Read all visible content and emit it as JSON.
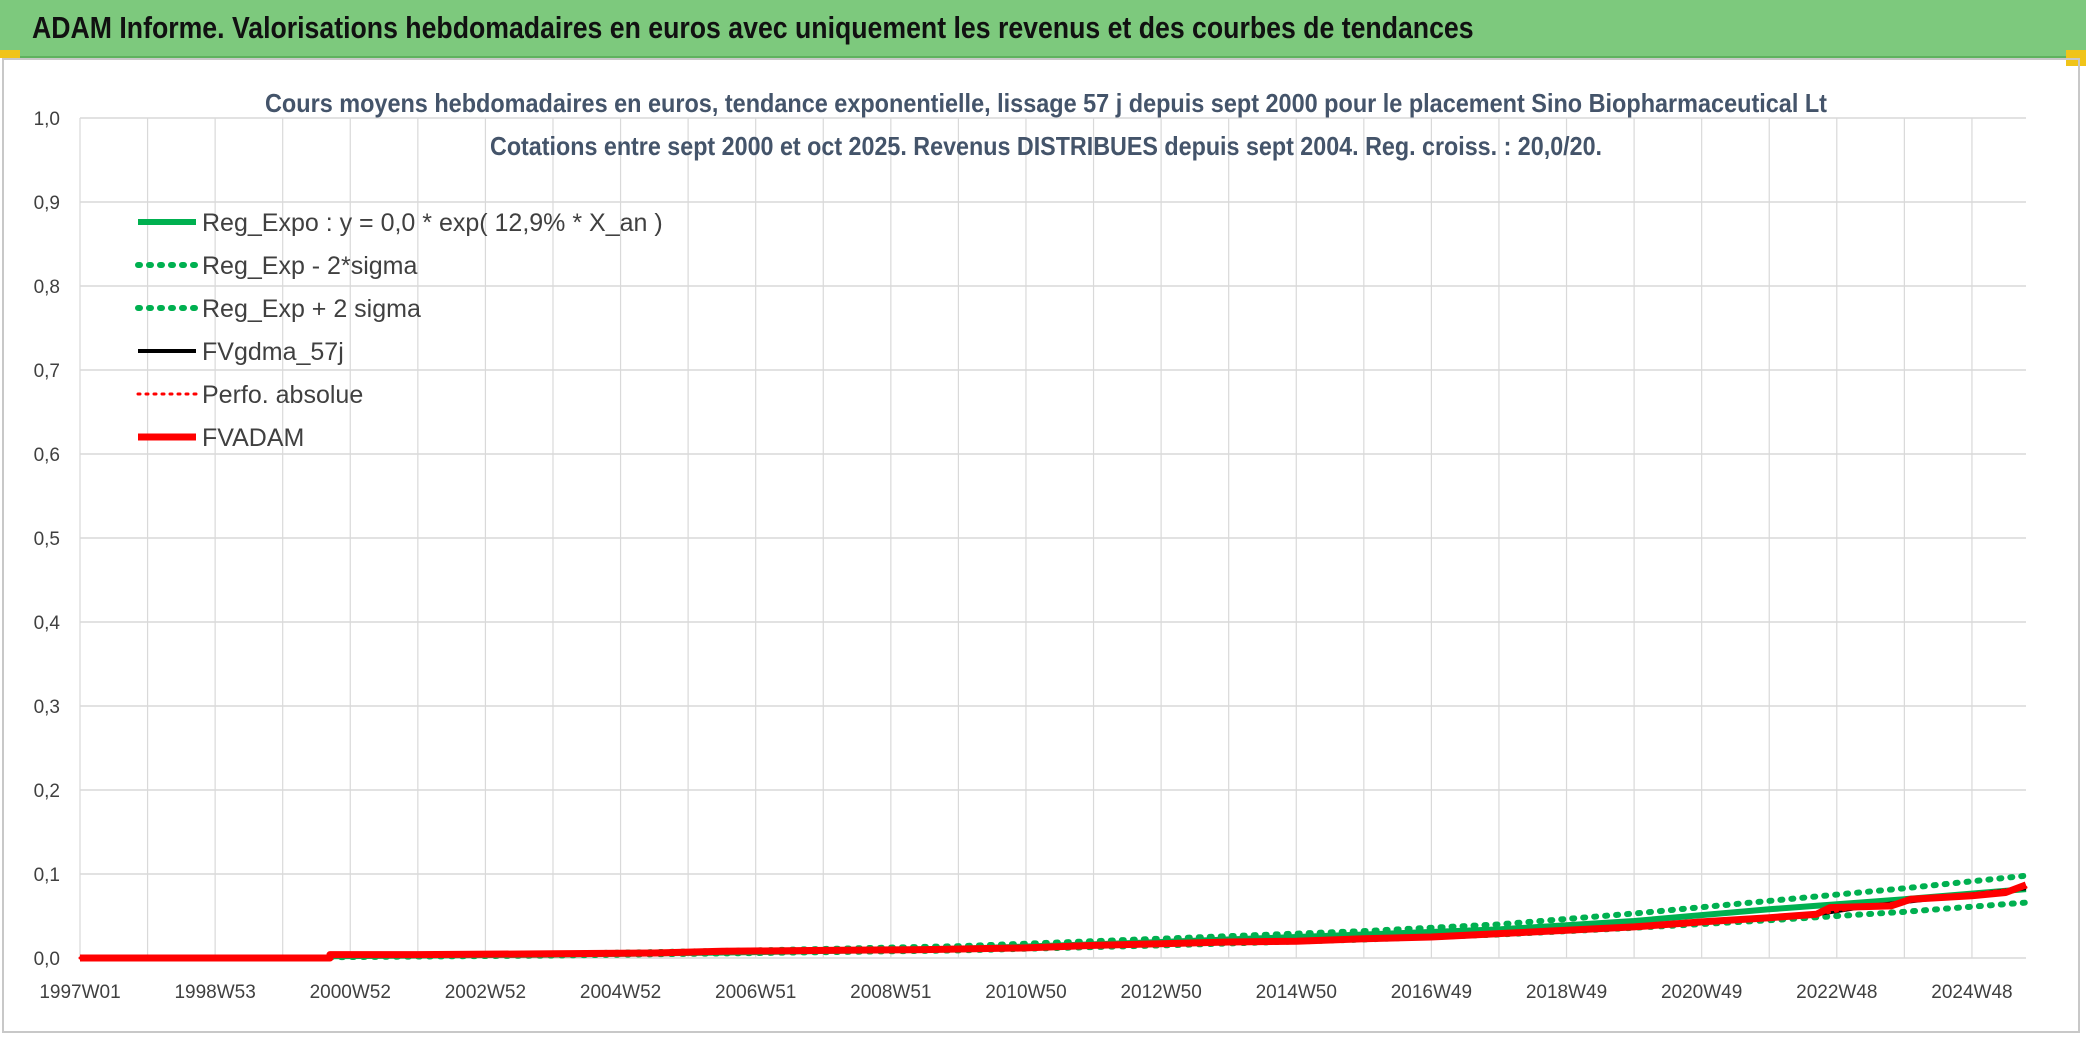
{
  "header": {
    "title": "ADAM Informe. Valorisations hebdomadaires en euros avec uniquement les revenus et des courbes de tendances"
  },
  "colors": {
    "banner": "#7dc97d",
    "green": "#00b050",
    "black": "#000000",
    "red": "#ff0000",
    "grid": "#d9d9d9",
    "title": "#44546a"
  },
  "chart_data": {
    "type": "line",
    "title_line1": "Cours moyens hebdomadaires en euros, tendance exponentielle, lissage 57 j depuis sept 2000 pour le placement Sino Biopharmaceutical Lt",
    "title_line2": "Cotations entre sept 2000 et oct 2025. Revenus DISTRIBUES depuis sept 2004. Reg. croiss. : 20,0/20.",
    "ylim": [
      0,
      1
    ],
    "yticks": [
      "0,0",
      "0,1",
      "0,2",
      "0,3",
      "0,4",
      "0,5",
      "0,6",
      "0,7",
      "0,8",
      "0,9",
      "1,0"
    ],
    "xlim": [
      1997.0,
      2025.8
    ],
    "xticks": [
      {
        "label": "1997W01",
        "x": 1997.0
      },
      {
        "label": "1998W53",
        "x": 1999.0
      },
      {
        "label": "2000W52",
        "x": 2001.0
      },
      {
        "label": "2002W52",
        "x": 2003.0
      },
      {
        "label": "2004W52",
        "x": 2005.0
      },
      {
        "label": "2006W51",
        "x": 2007.0
      },
      {
        "label": "2008W51",
        "x": 2009.0
      },
      {
        "label": "2010W50",
        "x": 2011.0
      },
      {
        "label": "2012W50",
        "x": 2013.0
      },
      {
        "label": "2014W50",
        "x": 2015.0
      },
      {
        "label": "2016W49",
        "x": 2017.0
      },
      {
        "label": "2018W49",
        "x": 2019.0
      },
      {
        "label": "2020W49",
        "x": 2021.0
      },
      {
        "label": "2022W48",
        "x": 2023.0
      },
      {
        "label": "2024W48",
        "x": 2025.0
      }
    ],
    "grid": true,
    "legend_position": "top-left",
    "series": [
      {
        "name": "Reg_Expo : y = 0,0 * exp( 12,9% *  X_an )",
        "color": "#00b050",
        "style": "solid",
        "width": 6,
        "points": [
          [
            2000.7,
            0.002
          ],
          [
            2004,
            0.004
          ],
          [
            2007,
            0.007
          ],
          [
            2010,
            0.011
          ],
          [
            2013,
            0.019
          ],
          [
            2016,
            0.028
          ],
          [
            2018,
            0.034
          ],
          [
            2020,
            0.044
          ],
          [
            2022,
            0.058
          ],
          [
            2024,
            0.07
          ],
          [
            2025.8,
            0.082
          ]
        ]
      },
      {
        "name": "Reg_Exp - 2*sigma",
        "color": "#00b050",
        "style": "dotted",
        "width": 6,
        "points": [
          [
            2000.7,
            0.001
          ],
          [
            2004,
            0.003
          ],
          [
            2007,
            0.006
          ],
          [
            2010,
            0.009
          ],
          [
            2013,
            0.015
          ],
          [
            2016,
            0.022
          ],
          [
            2018,
            0.028
          ],
          [
            2020,
            0.036
          ],
          [
            2022,
            0.045
          ],
          [
            2024,
            0.055
          ],
          [
            2025.8,
            0.066
          ]
        ]
      },
      {
        "name": "Reg_Exp + 2 sigma",
        "color": "#00b050",
        "style": "dotted",
        "width": 6,
        "points": [
          [
            2000.7,
            0.003
          ],
          [
            2004,
            0.005
          ],
          [
            2007,
            0.009
          ],
          [
            2010,
            0.014
          ],
          [
            2013,
            0.023
          ],
          [
            2016,
            0.032
          ],
          [
            2018,
            0.04
          ],
          [
            2020,
            0.053
          ],
          [
            2022,
            0.068
          ],
          [
            2024,
            0.083
          ],
          [
            2025.8,
            0.098
          ]
        ]
      },
      {
        "name": "FVgdma_57j",
        "color": "#000000",
        "style": "solid",
        "width": 4,
        "points": [
          [
            1997.0,
            0.0
          ],
          [
            2000.7,
            0.0
          ],
          [
            2000.7,
            0.004
          ],
          [
            2003,
            0.004
          ],
          [
            2005,
            0.005
          ],
          [
            2007,
            0.008
          ],
          [
            2009,
            0.009
          ],
          [
            2011,
            0.012
          ],
          [
            2013,
            0.017
          ],
          [
            2015,
            0.02
          ],
          [
            2017,
            0.024
          ],
          [
            2019,
            0.033
          ],
          [
            2021,
            0.042
          ],
          [
            2022.7,
            0.052
          ],
          [
            2023.5,
            0.062
          ],
          [
            2025.8,
            0.083
          ]
        ]
      },
      {
        "name": "Perfo. absolue",
        "color": "#ff0000",
        "style": "dotted",
        "width": 3,
        "points": [
          [
            1997.0,
            0.0
          ],
          [
            2000.7,
            0.0
          ],
          [
            2000.7,
            0.004
          ],
          [
            2003,
            0.004
          ],
          [
            2005,
            0.005
          ],
          [
            2007,
            0.008
          ],
          [
            2009,
            0.009
          ],
          [
            2011,
            0.012
          ],
          [
            2013,
            0.017
          ],
          [
            2015,
            0.02
          ],
          [
            2017,
            0.024
          ],
          [
            2019,
            0.033
          ],
          [
            2021,
            0.042
          ],
          [
            2022.7,
            0.052
          ],
          [
            2023.5,
            0.062
          ],
          [
            2025.8,
            0.084
          ]
        ]
      },
      {
        "name": "FVADAM",
        "color": "#ff0000",
        "style": "solid",
        "width": 7,
        "points": [
          [
            1997.0,
            0.0
          ],
          [
            2000.7,
            0.0
          ],
          [
            2000.7,
            0.004
          ],
          [
            2002,
            0.004
          ],
          [
            2004,
            0.005
          ],
          [
            2005.5,
            0.006
          ],
          [
            2006.5,
            0.008
          ],
          [
            2008,
            0.009
          ],
          [
            2009.5,
            0.01
          ],
          [
            2011,
            0.012
          ],
          [
            2012,
            0.015
          ],
          [
            2013,
            0.017
          ],
          [
            2014,
            0.019
          ],
          [
            2015,
            0.02
          ],
          [
            2016,
            0.023
          ],
          [
            2017,
            0.025
          ],
          [
            2018,
            0.029
          ],
          [
            2019,
            0.033
          ],
          [
            2020,
            0.037
          ],
          [
            2021,
            0.043
          ],
          [
            2022,
            0.048
          ],
          [
            2022.7,
            0.052
          ],
          [
            2022.9,
            0.06
          ],
          [
            2023.8,
            0.062
          ],
          [
            2024.1,
            0.07
          ],
          [
            2025,
            0.074
          ],
          [
            2025.5,
            0.078
          ],
          [
            2025.8,
            0.087
          ]
        ]
      }
    ]
  }
}
